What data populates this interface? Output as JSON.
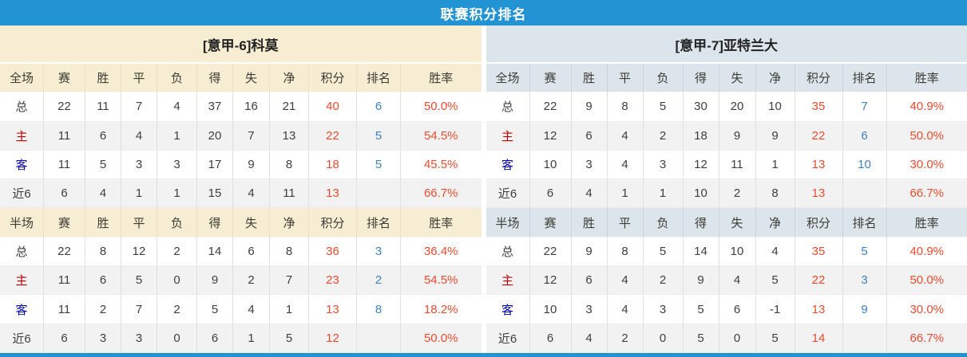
{
  "header": {
    "title": "联赛积分排名"
  },
  "columns": [
    "赛",
    "胜",
    "平",
    "负",
    "得",
    "失",
    "净",
    "积分",
    "排名",
    "胜率"
  ],
  "colors": {
    "accent_bar": "#2294D3",
    "left_panel_header_bg": "#F7EDD2",
    "right_panel_header_bg": "#DCE5EC",
    "points_and_rate_color": "#EF4B2E",
    "rank_color": "#3E82C4",
    "home_label_color": "#C00000",
    "away_label_color": "#0000BB"
  },
  "tables": [
    {
      "team_title": "[意甲-6]科莫",
      "sections": [
        {
          "scope_label": "全场",
          "rows": [
            {
              "type": "total",
              "label": "总",
              "values": [
                "22",
                "11",
                "7",
                "4",
                "37",
                "16",
                "21"
              ],
              "points": "40",
              "rank": "6",
              "rate": "50.0%"
            },
            {
              "type": "home",
              "label": "主",
              "values": [
                "11",
                "6",
                "4",
                "1",
                "20",
                "7",
                "13"
              ],
              "points": "22",
              "rank": "5",
              "rate": "54.5%"
            },
            {
              "type": "away",
              "label": "客",
              "values": [
                "11",
                "5",
                "3",
                "3",
                "17",
                "9",
                "8"
              ],
              "points": "18",
              "rank": "5",
              "rate": "45.5%"
            },
            {
              "type": "last6",
              "label": "近6",
              "values": [
                "6",
                "4",
                "1",
                "1",
                "15",
                "4",
                "11"
              ],
              "points": "13",
              "rank": "",
              "rate": "66.7%"
            }
          ]
        },
        {
          "scope_label": "半场",
          "rows": [
            {
              "type": "total",
              "label": "总",
              "values": [
                "22",
                "8",
                "12",
                "2",
                "14",
                "6",
                "8"
              ],
              "points": "36",
              "rank": "3",
              "rate": "36.4%"
            },
            {
              "type": "home",
              "label": "主",
              "values": [
                "11",
                "6",
                "5",
                "0",
                "9",
                "2",
                "7"
              ],
              "points": "23",
              "rank": "2",
              "rate": "54.5%"
            },
            {
              "type": "away",
              "label": "客",
              "values": [
                "11",
                "2",
                "7",
                "2",
                "5",
                "4",
                "1"
              ],
              "points": "13",
              "rank": "8",
              "rate": "18.2%"
            },
            {
              "type": "last6",
              "label": "近6",
              "values": [
                "6",
                "3",
                "3",
                "0",
                "6",
                "1",
                "5"
              ],
              "points": "12",
              "rank": "",
              "rate": "50.0%"
            }
          ]
        }
      ]
    },
    {
      "team_title": "[意甲-7]亚特兰大",
      "sections": [
        {
          "scope_label": "全场",
          "rows": [
            {
              "type": "total",
              "label": "总",
              "values": [
                "22",
                "9",
                "8",
                "5",
                "30",
                "20",
                "10"
              ],
              "points": "35",
              "rank": "7",
              "rate": "40.9%"
            },
            {
              "type": "home",
              "label": "主",
              "values": [
                "12",
                "6",
                "4",
                "2",
                "18",
                "9",
                "9"
              ],
              "points": "22",
              "rank": "6",
              "rate": "50.0%"
            },
            {
              "type": "away",
              "label": "客",
              "values": [
                "10",
                "3",
                "4",
                "3",
                "12",
                "11",
                "1"
              ],
              "points": "13",
              "rank": "10",
              "rate": "30.0%"
            },
            {
              "type": "last6",
              "label": "近6",
              "values": [
                "6",
                "4",
                "1",
                "1",
                "10",
                "2",
                "8"
              ],
              "points": "13",
              "rank": "",
              "rate": "66.7%"
            }
          ]
        },
        {
          "scope_label": "半场",
          "rows": [
            {
              "type": "total",
              "label": "总",
              "values": [
                "22",
                "9",
                "8",
                "5",
                "14",
                "10",
                "4"
              ],
              "points": "35",
              "rank": "5",
              "rate": "40.9%"
            },
            {
              "type": "home",
              "label": "主",
              "values": [
                "12",
                "6",
                "4",
                "2",
                "9",
                "4",
                "5"
              ],
              "points": "22",
              "rank": "3",
              "rate": "50.0%"
            },
            {
              "type": "away",
              "label": "客",
              "values": [
                "10",
                "3",
                "4",
                "3",
                "5",
                "6",
                "-1"
              ],
              "points": "13",
              "rank": "9",
              "rate": "30.0%"
            },
            {
              "type": "last6",
              "label": "近6",
              "values": [
                "6",
                "4",
                "2",
                "0",
                "5",
                "0",
                "5"
              ],
              "points": "14",
              "rank": "",
              "rate": "66.7%"
            }
          ]
        }
      ]
    }
  ]
}
